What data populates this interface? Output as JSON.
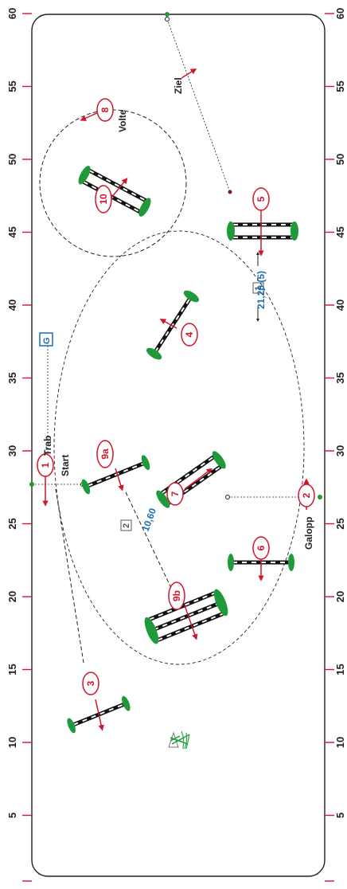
{
  "scale": {
    "marks": [
      "5",
      "10",
      "15",
      "20",
      "25",
      "30",
      "35",
      "40",
      "45",
      "50",
      "55",
      "60"
    ],
    "tick_color": "#d0162b"
  },
  "labels": {
    "start": "Start",
    "finish": "Ziel",
    "trot": "Trab",
    "canter": "Galopp",
    "volte": "Volte",
    "gate_box": "G"
  },
  "distances": [
    {
      "box": "1",
      "value": "21,20 (5)"
    },
    {
      "box": "2",
      "value": "10,60"
    }
  ],
  "obstacles": [
    "1",
    "2",
    "3",
    "4",
    "5",
    "6",
    "7",
    "8",
    "9a",
    "9b",
    "10"
  ],
  "colors": {
    "arena_border": "#222222",
    "obstacle_number": "#d0162b",
    "distance_text": "#1a6fb5",
    "gate_box": "#1a6fb5",
    "wing_green": "#1f9a3a"
  },
  "decoration": "plant-icon"
}
